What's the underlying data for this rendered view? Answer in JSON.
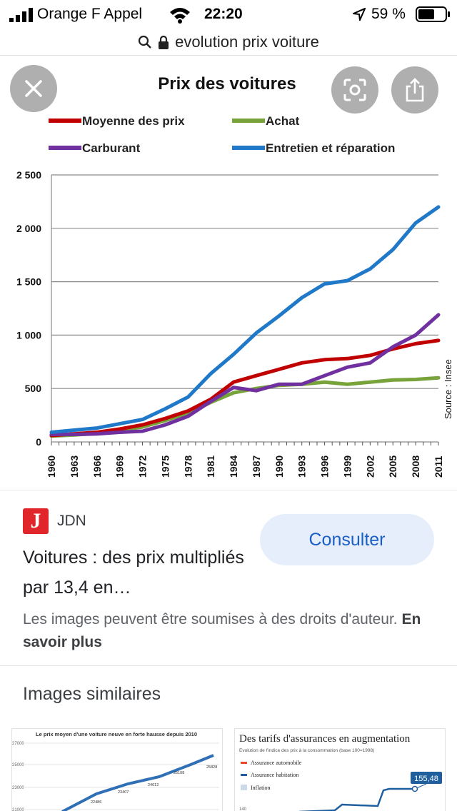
{
  "status_bar": {
    "carrier": "Orange F Appel",
    "time": "22:20",
    "battery": "59 %"
  },
  "url_bar": {
    "query": "evolution prix voiture"
  },
  "chart_data": {
    "type": "line",
    "title": "Prix des voitures",
    "source_note": "Source : Insee",
    "x": [
      1960,
      1963,
      1966,
      1969,
      1972,
      1975,
      1978,
      1981,
      1984,
      1987,
      1990,
      1993,
      1996,
      1999,
      2002,
      2005,
      2008,
      2011
    ],
    "x_tick_labels": [
      "1960",
      "1963",
      "1966",
      "1969",
      "1972",
      "1975",
      "1978",
      "1981",
      "1984",
      "1987",
      "1990",
      "1993",
      "1996",
      "1999",
      "2002",
      "2005",
      "2008",
      "2011"
    ],
    "y_ticks": [
      0,
      500,
      1000,
      1500,
      2000,
      2500
    ],
    "y_tick_labels": [
      "0",
      "500",
      "1 000",
      "1 500",
      "2 000",
      "2 500"
    ],
    "ylim": [
      0,
      2500
    ],
    "grid": true,
    "legend_placement": "top",
    "series": [
      {
        "name": "Moyenne des prix",
        "color": "#c00000",
        "values": [
          60,
          75,
          90,
          120,
          160,
          220,
          290,
          400,
          560,
          620,
          680,
          740,
          770,
          780,
          810,
          870,
          920,
          950
        ]
      },
      {
        "name": "Achat",
        "color": "#77a33a",
        "values": [
          55,
          65,
          80,
          110,
          140,
          200,
          270,
          370,
          460,
          500,
          530,
          540,
          560,
          540,
          560,
          580,
          585,
          600
        ]
      },
      {
        "name": "Carburant",
        "color": "#7030a0",
        "values": [
          70,
          70,
          75,
          90,
          100,
          160,
          240,
          380,
          510,
          480,
          540,
          540,
          620,
          700,
          740,
          890,
          1000,
          1190
        ]
      },
      {
        "name": "Entretien et réparation",
        "color": "#1f78c8",
        "values": [
          90,
          110,
          130,
          170,
          210,
          310,
          420,
          640,
          820,
          1020,
          1180,
          1350,
          1480,
          1510,
          1620,
          1800,
          2050,
          2200
        ]
      }
    ]
  },
  "result_card": {
    "source_logo_letter": "J",
    "source_name": "JDN",
    "consult_label": "Consulter",
    "title": "Voitures : des prix multipliés par 13,4 en…",
    "rights_text": "Les images peuvent être soumises à des droits d'auteur.",
    "rights_link": "En savoir plus"
  },
  "similar": {
    "heading": "Images similaires",
    "thumbs": [
      {
        "title": "Le prix moyen d'une voiture neuve en forte hausse depuis 2010",
        "y_labels": [
          "27000",
          "25000",
          "23000",
          "21000"
        ],
        "point_labels": [
          "22486",
          "23407",
          "24012",
          "25108",
          "25828"
        ]
      },
      {
        "title": "Des tarifs d'assurances en augmentation",
        "subtitle": "Evolution de l'indice des prix à la consommation (base 100=1998)",
        "legend": [
          "Assurance automobile",
          "Assurance habitation",
          "Inflation"
        ],
        "badge": "155,48",
        "y_label": "140"
      }
    ]
  },
  "colors": {
    "accent_blue": "#1a5fc7",
    "consult_bg": "#e7eefb",
    "jdn_red": "#e0262b"
  }
}
